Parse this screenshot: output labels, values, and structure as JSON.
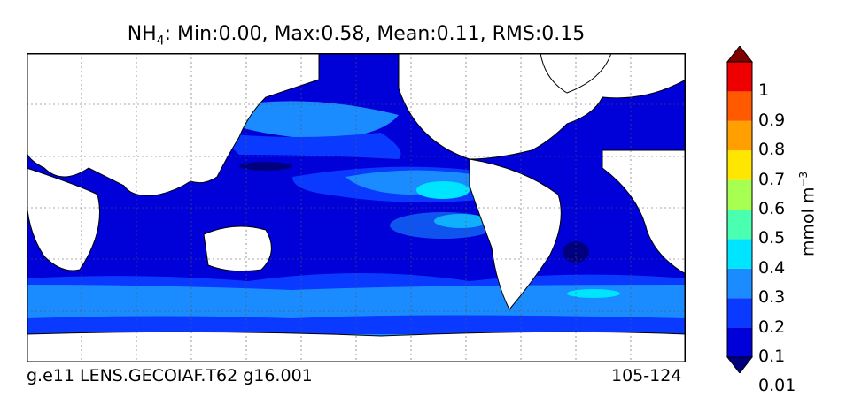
{
  "title": {
    "species": "NH",
    "subscript": "4",
    "stats": ": Min:0.00, Max:0.58, Mean:0.11, RMS:0.15"
  },
  "footer": {
    "case_name": "g.e11 LENS.GECOIAF.T62 g16.001",
    "years": "105-124"
  },
  "colorbar": {
    "unit_base": "mmol m",
    "unit_exp": "−3",
    "ticks": [
      "1",
      "0.9",
      "0.8",
      "0.7",
      "0.6",
      "0.5",
      "0.4",
      "0.3",
      "0.2",
      "0.1",
      "0.01"
    ],
    "colors": [
      "#00007f",
      "#0000d9",
      "#0a3aff",
      "#1a8cff",
      "#00e5ff",
      "#4bffb0",
      "#a7ff52",
      "#ffe600",
      "#ffa000",
      "#ff5a00",
      "#ee0000",
      "#7f0000"
    ],
    "land_color": "#ffffff"
  }
}
